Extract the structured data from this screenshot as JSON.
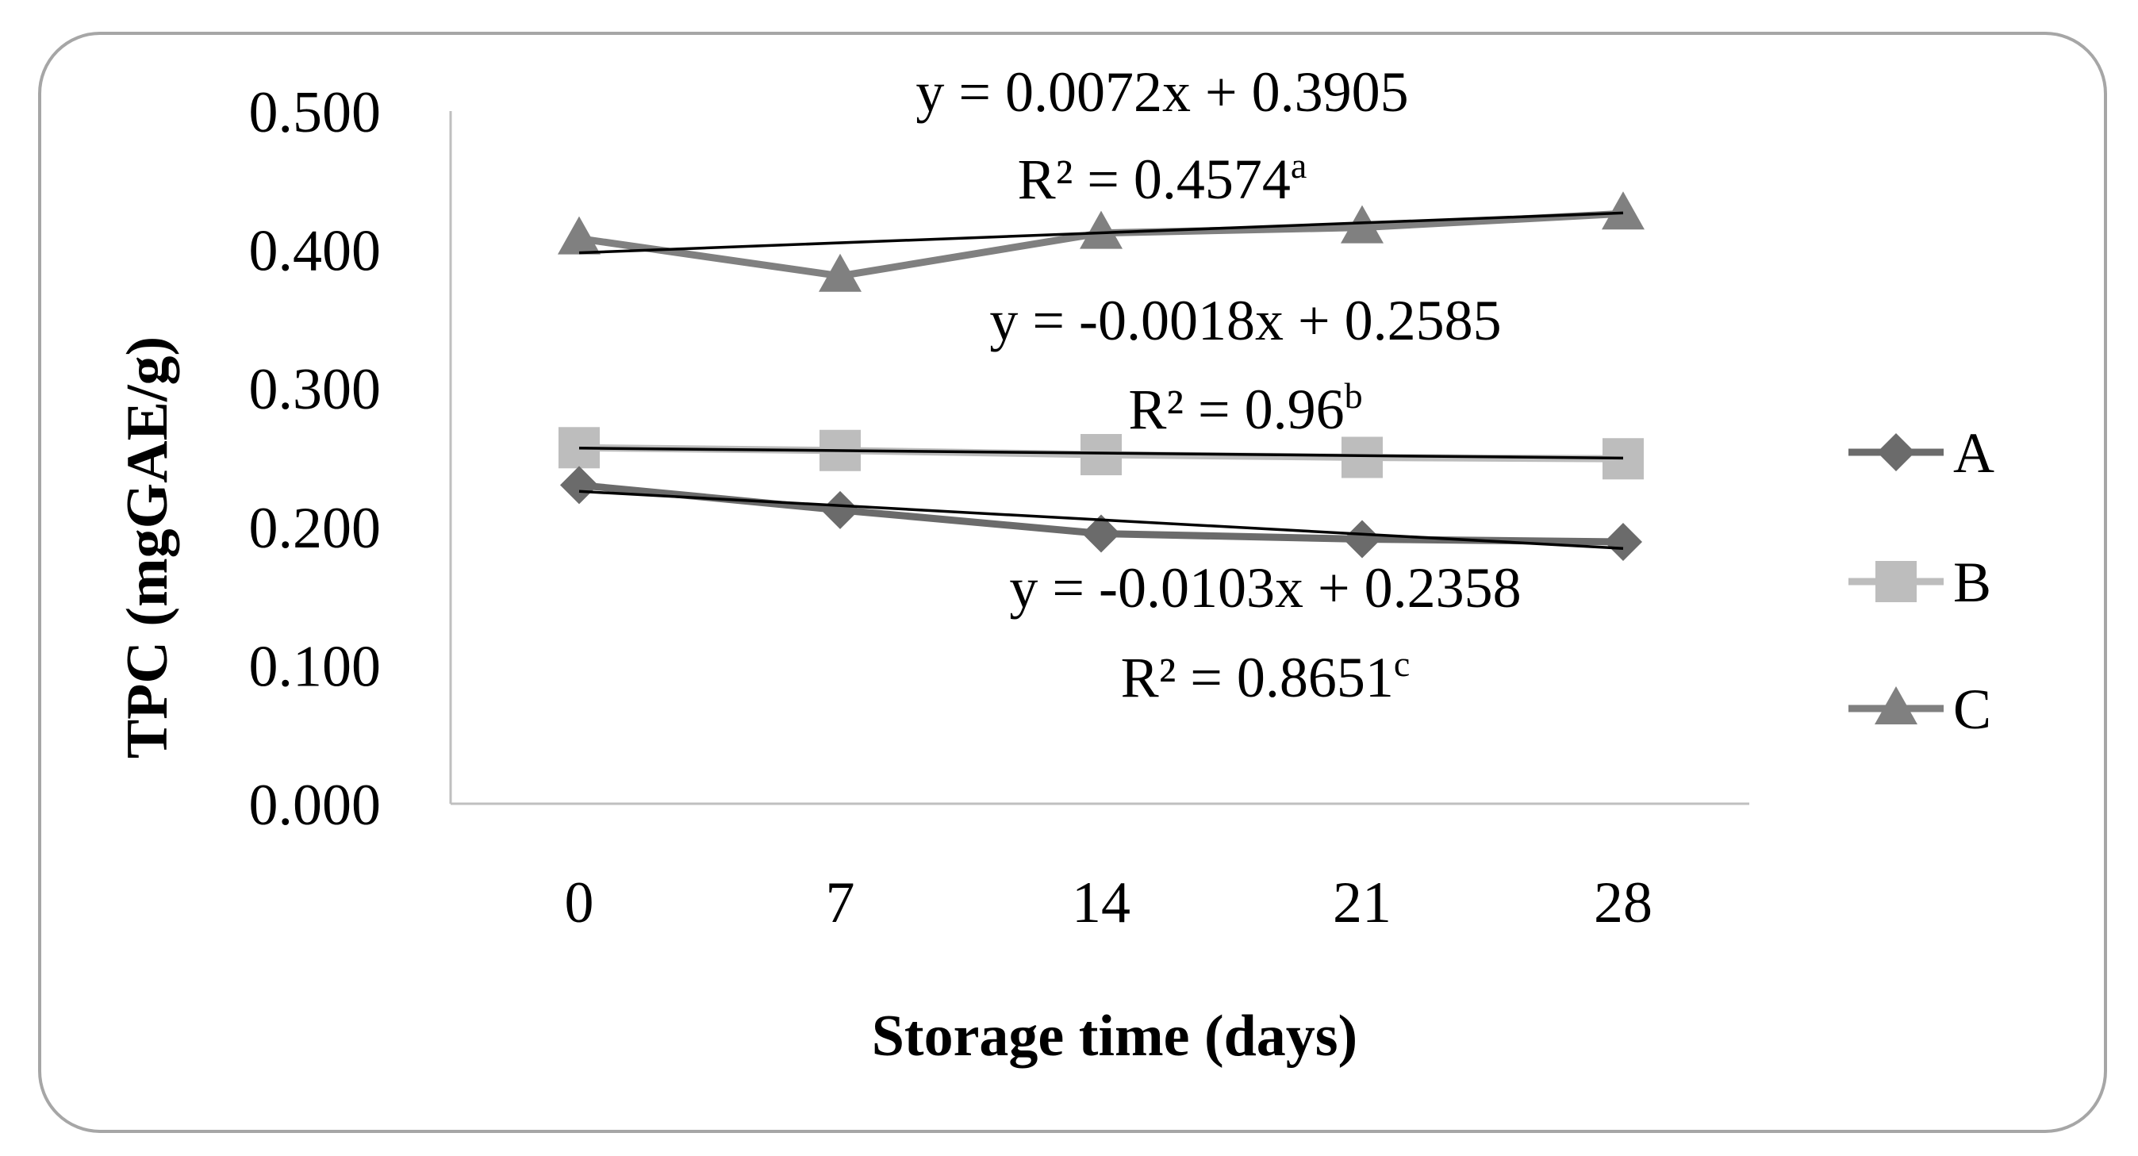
{
  "chart_data": {
    "type": "line",
    "xlabel": "Storage time (days)",
    "ylabel": "TPC (mgGAE/g)",
    "categories": [
      "0",
      "7",
      "14",
      "21",
      "28"
    ],
    "x": [
      0,
      7,
      14,
      21,
      28
    ],
    "ylim": [
      0.0,
      0.5
    ],
    "yticks": [
      "0.000",
      "0.100",
      "0.200",
      "0.300",
      "0.400",
      "0.500"
    ],
    "grid": false,
    "legend_position": "right",
    "series": [
      {
        "name": "A",
        "marker": "diamond",
        "color": "#6b6b6b",
        "values": [
          0.23,
          0.212,
          0.195,
          0.191,
          0.189
        ],
        "trendline": {
          "slope": -0.0103,
          "intercept": 0.2358
        }
      },
      {
        "name": "B",
        "marker": "square",
        "color": "#bdbdbd",
        "values": [
          0.257,
          0.255,
          0.252,
          0.25,
          0.249
        ],
        "trendline": {
          "slope": -0.0018,
          "intercept": 0.2585
        }
      },
      {
        "name": "C",
        "marker": "triangle",
        "color": "#808080",
        "values": [
          0.408,
          0.381,
          0.412,
          0.416,
          0.426
        ],
        "trendline": {
          "slope": 0.0072,
          "intercept": 0.3905
        }
      }
    ],
    "annotations": [
      {
        "series": "C",
        "equation": "y = 0.0072x + 0.3905",
        "r2": "R² = 0.4574",
        "sup": "a"
      },
      {
        "series": "B",
        "equation": "y = -0.0018x + 0.2585",
        "r2": "R² = 0.96",
        "sup": "b"
      },
      {
        "series": "A",
        "equation": "y = -0.0103x + 0.2358",
        "r2": "R² = 0.8651",
        "sup": "c"
      }
    ]
  }
}
